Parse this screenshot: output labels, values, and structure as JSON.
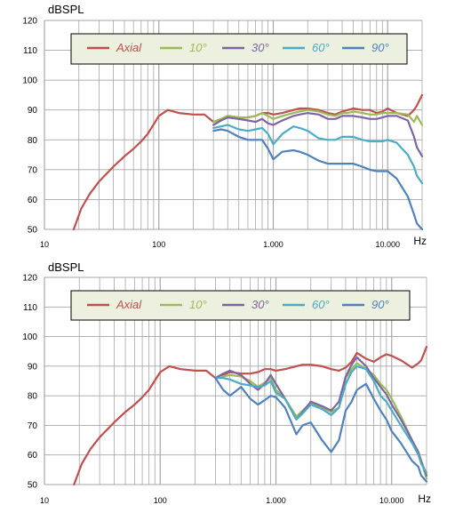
{
  "charts": [
    {
      "ylabel": "dBSPL",
      "xlabel_unit": "Hz",
      "yticks": [
        "120",
        "110",
        "100",
        "90",
        "80",
        "70",
        "60",
        "50"
      ],
      "xticks": [
        "10",
        "100",
        "1.000",
        "10.000"
      ],
      "legend": [
        "Axial",
        "10°",
        "30°",
        "60°",
        "90°"
      ]
    },
    {
      "ylabel": "dBSPL",
      "xlabel_unit": "Hz",
      "yticks": [
        "120",
        "110",
        "100",
        "90",
        "80",
        "70",
        "60",
        "50"
      ],
      "xticks": [
        "10",
        "100",
        "1.000",
        "10.000"
      ],
      "legend": [
        "Axial",
        "10°",
        "30°",
        "60°",
        "90°"
      ]
    }
  ],
  "colors": {
    "axial": "#c0504d",
    "deg10": "#9bbb59",
    "deg30": "#8064a2",
    "deg60": "#4bacc6",
    "deg90": "#4f81bd",
    "legend_bg": "#ebf1de",
    "grid": "#a6a6a6"
  },
  "chart_data": [
    {
      "type": "line",
      "x_scale": "log",
      "xlim": [
        10,
        20000
      ],
      "ylim": [
        50,
        120
      ],
      "ylabel": "dBSPL",
      "xlabel": "Hz",
      "legend_position": "top",
      "grid": true,
      "series": [
        {
          "name": "Axial",
          "x": [
            18,
            21,
            25,
            30,
            40,
            50,
            60,
            70,
            80,
            100,
            120,
            150,
            200,
            250,
            300,
            350,
            400,
            500,
            600,
            700,
            800,
            900,
            1000,
            1200,
            1500,
            1700,
            2000,
            2500,
            3000,
            3500,
            4000,
            4500,
            5000,
            6000,
            7000,
            8000,
            9000,
            10000,
            12000,
            15000,
            17000,
            18000,
            20000
          ],
          "y": [
            50,
            57,
            62,
            66,
            71,
            74.5,
            77,
            79.5,
            82,
            88,
            90,
            89,
            88.5,
            88.5,
            86,
            87,
            88,
            87.5,
            87.5,
            88,
            89,
            89,
            88.5,
            89,
            90,
            90.5,
            90.5,
            90,
            89,
            88.5,
            89.5,
            90,
            90.5,
            90,
            90,
            89,
            89.5,
            90.5,
            89,
            88,
            90,
            91.5,
            95
          ]
        },
        {
          "name": "10°",
          "x": [
            300,
            350,
            400,
            500,
            600,
            700,
            800,
            900,
            1000,
            1200,
            1500,
            1700,
            2000,
            2500,
            3000,
            3500,
            4000,
            4500,
            5000,
            6000,
            7000,
            8000,
            9000,
            10000,
            12000,
            15000,
            17000,
            18000,
            20000
          ],
          "y": [
            86,
            87,
            88,
            87.5,
            87.5,
            88,
            89,
            88,
            87,
            88,
            89,
            89.5,
            90,
            89.5,
            88.5,
            88,
            89,
            89,
            89.5,
            89,
            88.5,
            88.5,
            89,
            89,
            89,
            88.5,
            86,
            88,
            85
          ]
        },
        {
          "name": "30°",
          "x": [
            300,
            350,
            400,
            500,
            600,
            700,
            800,
            900,
            1000,
            1200,
            1500,
            1700,
            2000,
            2500,
            3000,
            3500,
            4000,
            4500,
            5000,
            6000,
            7000,
            8000,
            9000,
            10000,
            12000,
            15000,
            17000,
            18000,
            20000
          ],
          "y": [
            85,
            86.5,
            87.5,
            87,
            86.5,
            86,
            87,
            85.5,
            85,
            86.5,
            88,
            88.5,
            89,
            88.5,
            87,
            87,
            88,
            88,
            88,
            87.5,
            87,
            87,
            87.5,
            88,
            88,
            86.5,
            81,
            77.5,
            74.5
          ]
        },
        {
          "name": "60°",
          "x": [
            300,
            350,
            400,
            500,
            600,
            700,
            800,
            900,
            1000,
            1200,
            1500,
            1700,
            2000,
            2500,
            3000,
            3500,
            4000,
            4500,
            5000,
            6000,
            7000,
            8000,
            9000,
            10000,
            12000,
            15000,
            17000,
            18000,
            20000
          ],
          "y": [
            84,
            84.5,
            85,
            83.5,
            83,
            83.5,
            84,
            82,
            78.5,
            82,
            84.5,
            84,
            83,
            80.5,
            80,
            80,
            81,
            81,
            81,
            80,
            79.5,
            79.5,
            79.5,
            80,
            79,
            75,
            71,
            68,
            65.5
          ]
        },
        {
          "name": "90°",
          "x": [
            300,
            350,
            400,
            500,
            600,
            700,
            800,
            900,
            1000,
            1200,
            1500,
            1700,
            2000,
            2500,
            3000,
            3500,
            4000,
            4500,
            5000,
            6000,
            7000,
            8000,
            9000,
            10000,
            12000,
            15000,
            17000,
            18000,
            20000
          ],
          "y": [
            83,
            83.5,
            83,
            81,
            80,
            80,
            80,
            77,
            73.5,
            76,
            76.5,
            76,
            75,
            73,
            72,
            72,
            72,
            72,
            72,
            71,
            70,
            69.5,
            69.5,
            69.5,
            67,
            61,
            55,
            52,
            50
          ]
        }
      ]
    },
    {
      "type": "line",
      "x_scale": "log",
      "xlim": [
        10,
        20000
      ],
      "ylim": [
        50,
        120
      ],
      "ylabel": "dBSPL",
      "xlabel": "Hz",
      "legend_position": "top",
      "grid": true,
      "series": [
        {
          "name": "Axial",
          "x": [
            18,
            21,
            25,
            30,
            40,
            50,
            60,
            70,
            80,
            100,
            120,
            150,
            200,
            250,
            300,
            350,
            400,
            500,
            600,
            700,
            800,
            900,
            1000,
            1200,
            1500,
            1700,
            2000,
            2500,
            3000,
            3500,
            4000,
            4500,
            5000,
            6000,
            7000,
            8000,
            9000,
            10000,
            12000,
            15000,
            17000,
            18000,
            20000
          ],
          "y": [
            50,
            57,
            62,
            66,
            71,
            74.5,
            77,
            79.5,
            82,
            88,
            90,
            89,
            88.5,
            88.5,
            86,
            87,
            88,
            87.5,
            87.5,
            88,
            89,
            89,
            88.5,
            89,
            90,
            90.5,
            90.5,
            90,
            89,
            88.5,
            89.5,
            91.5,
            94.5,
            92.5,
            91.5,
            93,
            94,
            93.5,
            92,
            89.5,
            91,
            92,
            96.5
          ]
        },
        {
          "name": "10°",
          "x": [
            300,
            350,
            400,
            500,
            600,
            700,
            800,
            900,
            1000,
            1200,
            1500,
            1700,
            2000,
            2500,
            3000,
            3500,
            4000,
            4500,
            5000,
            6000,
            7000,
            8000,
            9000,
            10000,
            12000,
            15000,
            17000,
            18000,
            20000
          ],
          "y": [
            86,
            86.5,
            87,
            86.5,
            85,
            83,
            84.5,
            86,
            82,
            79,
            73,
            75,
            77.5,
            76,
            74.5,
            76,
            86,
            89,
            91,
            89,
            87,
            84,
            82,
            79,
            73,
            65,
            60,
            58,
            52
          ]
        },
        {
          "name": "30°",
          "x": [
            300,
            350,
            400,
            500,
            600,
            700,
            800,
            900,
            1000,
            1200,
            1500,
            1700,
            2000,
            2500,
            3000,
            3500,
            4000,
            4500,
            5000,
            6000,
            7000,
            8000,
            9000,
            10000,
            12000,
            15000,
            17000,
            18000,
            20000
          ],
          "y": [
            86,
            87.5,
            88.5,
            87,
            84,
            82,
            84,
            87,
            84,
            79,
            72,
            74.5,
            78,
            76.5,
            75,
            78,
            86.5,
            90.5,
            93,
            90,
            86,
            83,
            80.5,
            77,
            72,
            65,
            61,
            58,
            53
          ]
        },
        {
          "name": "60°",
          "x": [
            300,
            350,
            400,
            500,
            600,
            700,
            800,
            900,
            1000,
            1200,
            1500,
            1700,
            2000,
            2500,
            3000,
            3500,
            4000,
            4500,
            5000,
            6000,
            7000,
            8000,
            9000,
            10000,
            12000,
            15000,
            17000,
            18000,
            20000
          ],
          "y": [
            86,
            86,
            85.5,
            84,
            83.5,
            83,
            83.5,
            85,
            81,
            79,
            72,
            74,
            77,
            75.5,
            73.5,
            76,
            84,
            88,
            90,
            89,
            85,
            80,
            78,
            75,
            70,
            64,
            60,
            57,
            54
          ]
        },
        {
          "name": "90°",
          "x": [
            300,
            350,
            400,
            500,
            600,
            700,
            800,
            900,
            1000,
            1200,
            1500,
            1700,
            2000,
            2500,
            3000,
            3500,
            4000,
            4500,
            5000,
            6000,
            7000,
            8000,
            9000,
            10000,
            12000,
            15000,
            17000,
            18000,
            20000
          ],
          "y": [
            86,
            82,
            80,
            83,
            79,
            77,
            78.5,
            80,
            79.5,
            76,
            67,
            70,
            71,
            65,
            61,
            65,
            75,
            78,
            82,
            84,
            79,
            75,
            72,
            68,
            64,
            58,
            56,
            53,
            51
          ]
        }
      ]
    }
  ]
}
